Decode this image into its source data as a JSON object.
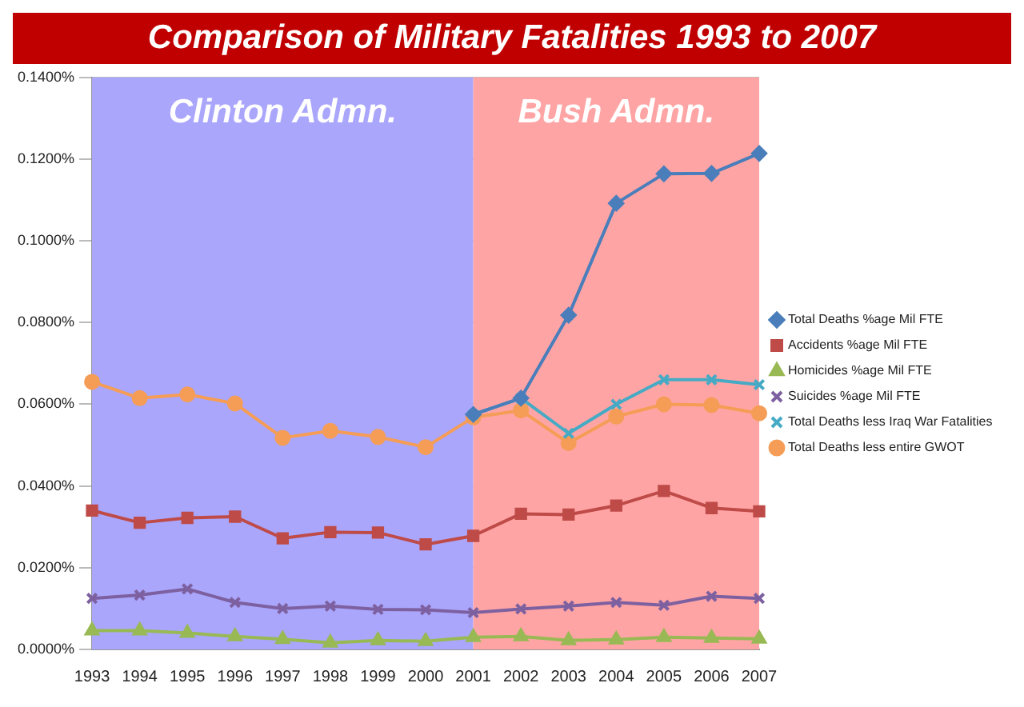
{
  "chart_data": {
    "type": "line",
    "title": "Comparison of Military Fatalities 1993 to 2007",
    "categories": [
      "1993",
      "1994",
      "1995",
      "1996",
      "1997",
      "1998",
      "1999",
      "2000",
      "2001",
      "2002",
      "2003",
      "2004",
      "2005",
      "2006",
      "2007"
    ],
    "series": [
      {
        "name": "Total Deaths %age Mil FTE",
        "color": "#4a7ebb",
        "marker": "diamond",
        "values": [
          null,
          null,
          null,
          null,
          null,
          null,
          null,
          null,
          0.0575,
          0.0615,
          0.0818,
          0.1092,
          0.1164,
          0.1165,
          0.1214
        ]
      },
      {
        "name": "Accidents %age Mil FTE",
        "color": "#be4b48",
        "marker": "square",
        "values": [
          0.034,
          0.031,
          0.0322,
          0.0325,
          0.0272,
          0.0287,
          0.0286,
          0.0257,
          0.0278,
          0.0332,
          0.033,
          0.0352,
          0.0388,
          0.0346,
          0.0338
        ]
      },
      {
        "name": "Homicides %age Mil FTE",
        "color": "#98b954",
        "marker": "triangle",
        "values": [
          0.0046,
          0.0046,
          0.004,
          0.0032,
          0.0025,
          0.0016,
          0.0022,
          0.002,
          0.003,
          0.0032,
          0.0022,
          0.0024,
          0.003,
          0.0028,
          0.0026
        ]
      },
      {
        "name": "Suicides %age Mil FTE",
        "color": "#7d60a0",
        "marker": "cross",
        "values": [
          0.0125,
          0.0133,
          0.0148,
          0.0115,
          0.01,
          0.0106,
          0.0098,
          0.0097,
          0.009,
          0.0099,
          0.0106,
          0.0115,
          0.0108,
          0.013,
          0.0125
        ]
      },
      {
        "name": "Total Deaths less Iraq War Fatalities",
        "color": "#46aac5",
        "marker": "cross",
        "values": [
          null,
          null,
          null,
          null,
          null,
          null,
          null,
          null,
          0.0575,
          0.0615,
          0.0529,
          0.06,
          0.066,
          0.066,
          0.0648
        ]
      },
      {
        "name": "Total Deaths less entire GWOT",
        "color": "#f59d56",
        "marker": "circle",
        "values": [
          0.0655,
          0.0615,
          0.0624,
          0.0602,
          0.0518,
          0.0535,
          0.052,
          0.0495,
          0.0568,
          0.0585,
          0.0505,
          0.057,
          0.06,
          0.0598,
          0.0578
        ]
      }
    ],
    "ylim": [
      0,
      0.14
    ],
    "yticks": [
      {
        "value": 0,
        "label": "0.0000%"
      },
      {
        "value": 0.02,
        "label": "0.0200%"
      },
      {
        "value": 0.04,
        "label": "0.0400%"
      },
      {
        "value": 0.06,
        "label": "0.0600%"
      },
      {
        "value": 0.08,
        "label": "0.0800%"
      },
      {
        "value": 0.1,
        "label": "0.1000%"
      },
      {
        "value": 0.12,
        "label": "0.1200%"
      },
      {
        "value": 0.14,
        "label": "0.1400%"
      }
    ],
    "bands": [
      {
        "axis": "x",
        "from": "1993",
        "to": "2001",
        "label": "Clinton Admn.",
        "color": "#aaa6fc"
      },
      {
        "axis": "x",
        "from": "2001",
        "to": "2007",
        "label": "Bush Admn.",
        "color": "#ffa4a4"
      }
    ],
    "grid": "y",
    "legend": "right",
    "line_style": "solid"
  }
}
